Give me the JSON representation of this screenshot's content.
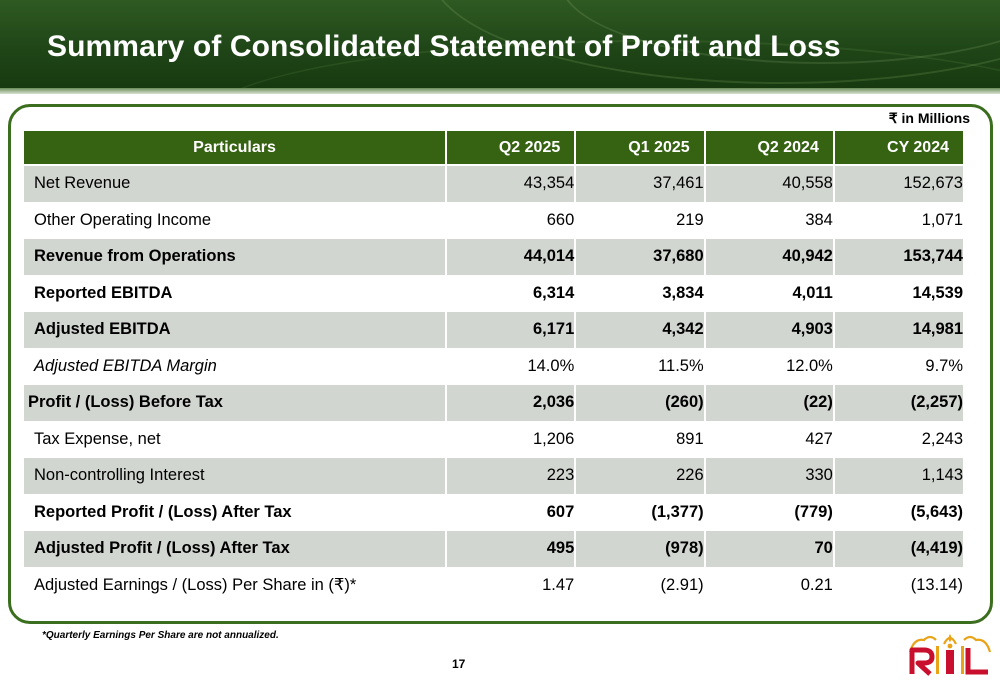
{
  "header": {
    "title": "Summary of Consolidated Statement of Profit and Loss"
  },
  "unit_note": "₹ in Millions",
  "table": {
    "columns": [
      "Particulars",
      "Q2 2025",
      "Q1 2025",
      "Q2 2024",
      "CY 2024"
    ],
    "rows": [
      {
        "label": "Net Revenue",
        "values": [
          "43,354",
          "37,461",
          "40,558",
          "152,673"
        ]
      },
      {
        "label": "Other Operating Income",
        "values": [
          "660",
          "219",
          "384",
          "1,071"
        ]
      },
      {
        "label": "Revenue from Operations",
        "values": [
          "44,014",
          "37,680",
          "40,942",
          "153,744"
        ]
      },
      {
        "label": "Reported EBITDA",
        "values": [
          "6,314",
          "3,834",
          "4,011",
          "14,539"
        ]
      },
      {
        "label": "Adjusted EBITDA",
        "values": [
          "6,171",
          "4,342",
          "4,903",
          "14,981"
        ]
      },
      {
        "label": "Adjusted EBITDA Margin",
        "values": [
          "14.0%",
          "11.5%",
          "12.0%",
          "9.7%"
        ]
      },
      {
        "label": "Profit / (Loss) Before Tax",
        "values": [
          "2,036",
          "(260)",
          "(22)",
          "(2,257)"
        ]
      },
      {
        "label": "Tax Expense, net",
        "values": [
          "1,206",
          "891",
          "427",
          "2,243"
        ]
      },
      {
        "label": "Non-controlling Interest",
        "values": [
          "223",
          "226",
          "330",
          "1,143"
        ]
      },
      {
        "label": "Reported Profit / (Loss) After Tax",
        "values": [
          "607",
          "(1,377)",
          "(779)",
          "(5,643)"
        ]
      },
      {
        "label": "Adjusted Profit / (Loss) After Tax",
        "values": [
          "495",
          "(978)",
          "70",
          "(4,419)"
        ]
      },
      {
        "label": "Adjusted Earnings / (Loss) Per Share in (₹)*",
        "values": [
          "1.47",
          "(2.91)",
          "0.21",
          "(13.14)"
        ]
      }
    ]
  },
  "footnote": "*Quarterly Earnings Per Share are not annualized.",
  "page_number": "17",
  "logo": {
    "text": "RIL",
    "colors": {
      "letters": "#c8102e",
      "accent": "#e8a317"
    }
  },
  "colors": {
    "brand_green": "#356311",
    "row_shade": "#d2d6d1",
    "frame_green": "#3b6e1e"
  }
}
